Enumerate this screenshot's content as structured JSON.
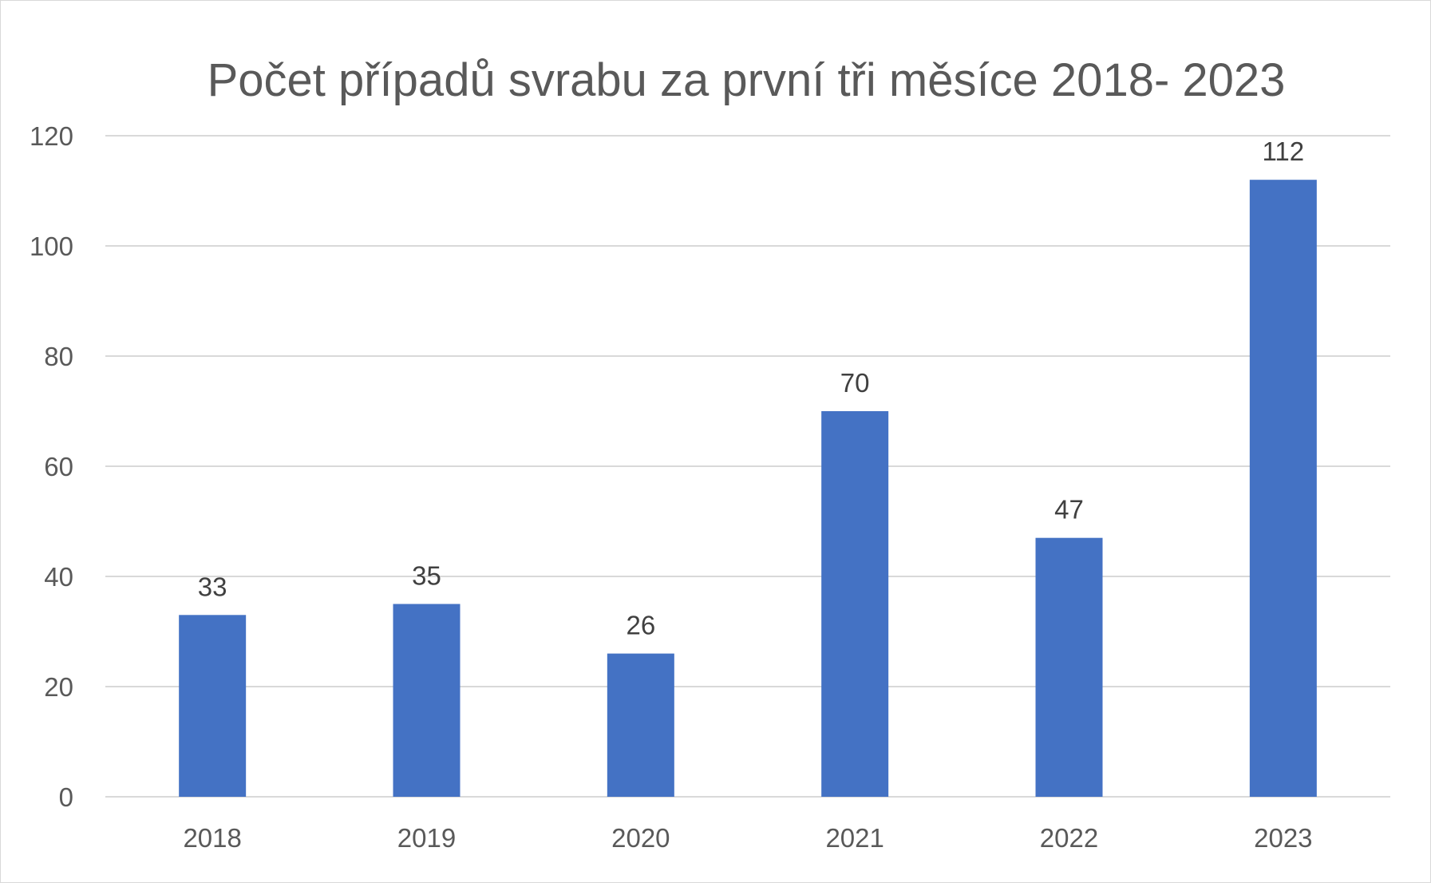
{
  "chart_data": {
    "type": "bar",
    "title": "Počet případů svrabu za první tři měsíce 2018- 2023",
    "categories": [
      "2018",
      "2019",
      "2020",
      "2021",
      "2022",
      "2023"
    ],
    "values": [
      33,
      35,
      26,
      70,
      47,
      112
    ],
    "xlabel": "",
    "ylabel": "",
    "ylim": [
      0,
      120
    ],
    "yticks": [
      "0",
      "20",
      "40",
      "60",
      "80",
      "100",
      "120"
    ],
    "grid": true,
    "legend": "none",
    "colors": {
      "bar": "#4472C4",
      "grid": "#d9d9d9",
      "axis_text": "#595959",
      "data_label": "#404040"
    }
  }
}
